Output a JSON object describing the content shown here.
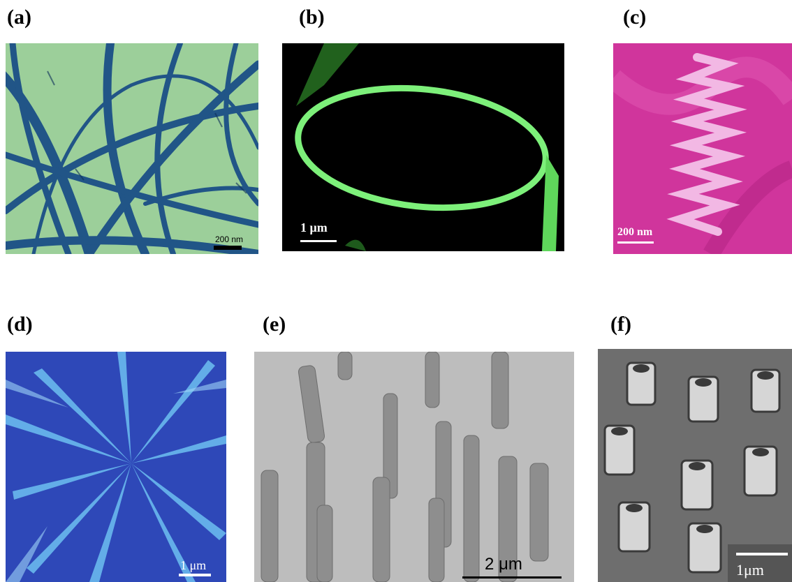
{
  "panels": [
    {
      "label": "(a)",
      "scale": "200 nm"
    },
    {
      "label": "(b)",
      "scale": "1 μm"
    },
    {
      "label": "(c)",
      "scale": "200 nm"
    },
    {
      "label": "(d)",
      "scale": "1 μm"
    },
    {
      "label": "(e)",
      "scale": "2 μm"
    },
    {
      "label": "(f)",
      "scale": "1μm"
    }
  ],
  "colors": {
    "a_background": "#9ccf9a",
    "a_fiber": "#1b4f86",
    "b_background": "#000000",
    "b_ring": "#7df07a",
    "c_background": "#d0359c",
    "c_spring": "#f2b8e4",
    "d_background": "#2e48b8",
    "d_blade": "#69b8ee",
    "e_background": "#bdbdbd",
    "e_rod": "#8e8e8e",
    "f_background": "#6e6e6e",
    "f_tube": "#d6d6d6"
  }
}
